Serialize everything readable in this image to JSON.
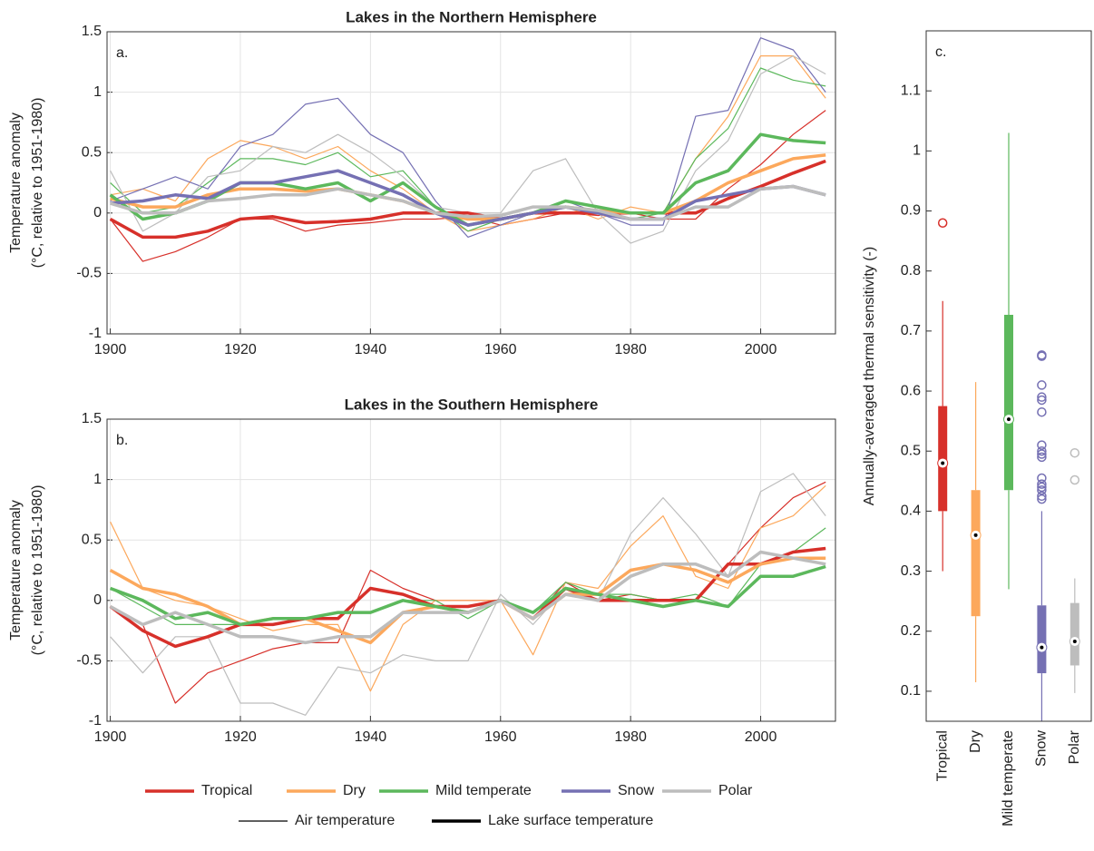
{
  "chart_data": [
    {
      "type": "line",
      "title": "Lakes in the Northern Hemisphere",
      "annotation": "a.",
      "ylabel": [
        "Temperature anomaly",
        "(°C, relative to 1951-1980)"
      ],
      "x": [
        1900,
        1905,
        1910,
        1915,
        1920,
        1925,
        1930,
        1935,
        1940,
        1945,
        1950,
        1955,
        1960,
        1965,
        1970,
        1975,
        1980,
        1985,
        1990,
        1995,
        2000,
        2005,
        2010
      ],
      "xlim": [
        1899.5,
        2011.5
      ],
      "xticks": [
        1900,
        1920,
        1940,
        1960,
        1980,
        2000
      ],
      "ylim": [
        -1,
        1.5
      ],
      "yticks": [
        -1,
        -0.5,
        0,
        0.5,
        1,
        1.5
      ],
      "grid": true,
      "series": [
        {
          "color": "#d7302a",
          "width": 1.2,
          "values": [
            -0.05,
            -0.4,
            -0.32,
            -0.2,
            -0.05,
            -0.05,
            -0.15,
            -0.1,
            -0.08,
            -0.05,
            -0.05,
            -0.03,
            -0.1,
            -0.05,
            0.0,
            -0.02,
            0.0,
            -0.05,
            -0.05,
            0.2,
            0.4,
            0.65,
            0.85
          ]
        },
        {
          "color": "#fca85c",
          "width": 1.2,
          "values": [
            0.15,
            0.2,
            0.1,
            0.45,
            0.6,
            0.55,
            0.45,
            0.55,
            0.35,
            0.2,
            0.0,
            -0.15,
            -0.1,
            -0.05,
            0.05,
            -0.05,
            0.05,
            0.0,
            0.45,
            0.8,
            1.3,
            1.3,
            0.95
          ]
        },
        {
          "color": "#5cb85c",
          "width": 1.2,
          "values": [
            0.25,
            0.0,
            0.05,
            0.25,
            0.45,
            0.45,
            0.4,
            0.5,
            0.3,
            0.35,
            0.05,
            -0.15,
            -0.05,
            0.0,
            0.1,
            0.05,
            -0.05,
            0.0,
            0.45,
            0.7,
            1.2,
            1.1,
            1.05
          ]
        },
        {
          "color": "#7570b3",
          "width": 1.2,
          "values": [
            0.1,
            0.2,
            0.3,
            0.2,
            0.55,
            0.65,
            0.9,
            0.95,
            0.65,
            0.5,
            0.1,
            -0.2,
            -0.1,
            0.0,
            0.1,
            0.0,
            -0.1,
            -0.1,
            0.8,
            0.85,
            1.45,
            1.35,
            1.0
          ]
        },
        {
          "color": "#bdbdbd",
          "width": 1.2,
          "values": [
            0.35,
            -0.15,
            0.0,
            0.3,
            0.35,
            0.55,
            0.5,
            0.65,
            0.5,
            0.3,
            0.05,
            0.0,
            0.0,
            0.35,
            0.45,
            0.0,
            -0.25,
            -0.15,
            0.35,
            0.6,
            1.15,
            1.3,
            1.15
          ]
        },
        {
          "color": "#d7302a",
          "width": 3.5,
          "values": [
            -0.05,
            -0.2,
            -0.2,
            -0.15,
            -0.05,
            -0.03,
            -0.08,
            -0.07,
            -0.05,
            0.0,
            0.0,
            0.0,
            -0.05,
            0.0,
            0.0,
            0.0,
            0.0,
            0.0,
            0.0,
            0.12,
            0.22,
            0.33,
            0.43
          ]
        },
        {
          "color": "#fca85c",
          "width": 3.5,
          "values": [
            0.12,
            0.05,
            0.05,
            0.15,
            0.2,
            0.2,
            0.18,
            0.2,
            0.15,
            0.1,
            0.0,
            -0.05,
            -0.05,
            0.0,
            0.05,
            0.02,
            0.0,
            0.0,
            0.1,
            0.25,
            0.35,
            0.45,
            0.48
          ]
        },
        {
          "color": "#5cb85c",
          "width": 3.5,
          "values": [
            0.15,
            -0.05,
            0.0,
            0.1,
            0.25,
            0.25,
            0.2,
            0.25,
            0.1,
            0.25,
            0.05,
            -0.1,
            -0.05,
            0.0,
            0.1,
            0.05,
            0.0,
            0.0,
            0.25,
            0.35,
            0.65,
            0.6,
            0.58
          ]
        },
        {
          "color": "#7570b3",
          "width": 3.5,
          "values": [
            0.08,
            0.1,
            0.15,
            0.12,
            0.25,
            0.25,
            0.3,
            0.35,
            0.25,
            0.15,
            0.0,
            -0.1,
            -0.05,
            0.0,
            0.05,
            0.0,
            -0.05,
            -0.05,
            0.1,
            0.15,
            0.2,
            0.22,
            0.15
          ]
        },
        {
          "color": "#bdbdbd",
          "width": 3.5,
          "values": [
            0.08,
            0.0,
            0.0,
            0.1,
            0.12,
            0.15,
            0.15,
            0.2,
            0.15,
            0.1,
            0.0,
            -0.03,
            -0.02,
            0.05,
            0.05,
            0.02,
            -0.05,
            -0.05,
            0.05,
            0.05,
            0.2,
            0.22,
            0.15
          ]
        }
      ]
    },
    {
      "type": "line",
      "title": "Lakes in the Southern Hemisphere",
      "annotation": "b.",
      "ylabel": [
        "Temperature anomaly",
        "(°C, relative to 1951-1980)"
      ],
      "x": [
        1900,
        1905,
        1910,
        1915,
        1920,
        1925,
        1930,
        1935,
        1940,
        1945,
        1950,
        1955,
        1960,
        1965,
        1970,
        1975,
        1980,
        1985,
        1990,
        1995,
        2000,
        2005,
        2010
      ],
      "xlim": [
        1899.5,
        2011.5
      ],
      "xticks": [
        1900,
        1920,
        1940,
        1960,
        1980,
        2000
      ],
      "ylim": [
        -1,
        1.5
      ],
      "yticks": [
        -1,
        -0.5,
        0,
        0.5,
        1,
        1.5
      ],
      "grid": true,
      "series": [
        {
          "color": "#d7302a",
          "width": 1.2,
          "values": [
            -0.05,
            -0.2,
            -0.85,
            -0.6,
            -0.5,
            -0.4,
            -0.35,
            -0.35,
            0.25,
            0.1,
            0.0,
            0.0,
            0.0,
            -0.15,
            0.15,
            0.0,
            0.05,
            0.0,
            0.0,
            0.3,
            0.6,
            0.85,
            0.98
          ]
        },
        {
          "color": "#fca85c",
          "width": 1.2,
          "values": [
            0.65,
            0.1,
            0.0,
            -0.05,
            -0.15,
            -0.25,
            -0.2,
            -0.2,
            -0.75,
            -0.2,
            0.0,
            0.0,
            0.0,
            -0.45,
            0.15,
            0.1,
            0.45,
            0.7,
            0.2,
            0.1,
            0.6,
            0.7,
            0.95
          ]
        },
        {
          "color": "#5cb85c",
          "width": 1.2,
          "values": [
            0.1,
            -0.05,
            -0.2,
            -0.2,
            -0.2,
            -0.15,
            -0.15,
            -0.1,
            -0.1,
            0.0,
            0.0,
            -0.15,
            0.0,
            -0.1,
            0.15,
            0.05,
            0.05,
            0.0,
            0.05,
            -0.05,
            0.3,
            0.4,
            0.6
          ]
        },
        {
          "color": "#bdbdbd",
          "width": 1.2,
          "values": [
            -0.3,
            -0.6,
            -0.3,
            -0.3,
            -0.85,
            -0.85,
            -0.95,
            -0.55,
            -0.6,
            -0.45,
            -0.5,
            -0.5,
            0.05,
            -0.2,
            0.1,
            0.0,
            0.55,
            0.85,
            0.55,
            0.2,
            0.9,
            1.05,
            0.7
          ]
        },
        {
          "color": "#d7302a",
          "width": 3.5,
          "values": [
            -0.05,
            -0.25,
            -0.38,
            -0.3,
            -0.2,
            -0.2,
            -0.15,
            -0.15,
            0.1,
            0.05,
            -0.05,
            -0.05,
            0.0,
            -0.15,
            0.1,
            0.0,
            0.0,
            0.0,
            0.0,
            0.3,
            0.3,
            0.4,
            0.43
          ]
        },
        {
          "color": "#fca85c",
          "width": 3.5,
          "values": [
            0.25,
            0.1,
            0.05,
            -0.05,
            -0.2,
            -0.15,
            -0.15,
            -0.25,
            -0.35,
            -0.1,
            -0.05,
            -0.1,
            0.0,
            -0.15,
            0.05,
            0.05,
            0.25,
            0.3,
            0.25,
            0.15,
            0.3,
            0.35,
            0.35
          ]
        },
        {
          "color": "#5cb85c",
          "width": 3.5,
          "values": [
            0.1,
            0.0,
            -0.15,
            -0.1,
            -0.2,
            -0.15,
            -0.15,
            -0.1,
            -0.1,
            0.0,
            -0.05,
            -0.1,
            0.0,
            -0.1,
            0.1,
            0.05,
            0.0,
            -0.05,
            0.0,
            -0.05,
            0.2,
            0.2,
            0.28
          ]
        },
        {
          "color": "#bdbdbd",
          "width": 3.5,
          "values": [
            -0.05,
            -0.2,
            -0.1,
            -0.2,
            -0.3,
            -0.3,
            -0.35,
            -0.3,
            -0.3,
            -0.1,
            -0.1,
            -0.1,
            0.0,
            -0.15,
            0.05,
            0.0,
            0.2,
            0.3,
            0.3,
            0.2,
            0.4,
            0.35,
            0.3
          ]
        }
      ]
    },
    {
      "type": "box",
      "annotation": "c.",
      "ylabel": [
        "Annually-averaged thermal sensitivity (-)"
      ],
      "categories": [
        "Tropical",
        "Dry",
        "Mild temperate",
        "Snow",
        "Polar"
      ],
      "ylim": [
        0.05,
        1.2
      ],
      "yticks": [
        0.1,
        0.2,
        0.3,
        0.4,
        0.5,
        0.6,
        0.7,
        0.8,
        0.9,
        1,
        1.1
      ],
      "boxes": [
        {
          "color": "#d7302a",
          "low": 0.3,
          "q1": 0.4,
          "median": 0.48,
          "q3": 0.575,
          "high": 0.75,
          "outliers": [
            0.88
          ]
        },
        {
          "color": "#fca85c",
          "low": 0.115,
          "q1": 0.225,
          "median": 0.36,
          "q3": 0.435,
          "high": 0.615,
          "outliers": []
        },
        {
          "color": "#5cb85c",
          "low": 0.27,
          "q1": 0.435,
          "median": 0.553,
          "q3": 0.727,
          "high": 1.03,
          "outliers": []
        },
        {
          "color": "#7570b3",
          "low": 0.05,
          "q1": 0.13,
          "median": 0.173,
          "q3": 0.243,
          "high": 0.4,
          "outliers": [
            0.42,
            0.425,
            0.435,
            0.44,
            0.445,
            0.455,
            0.49,
            0.495,
            0.5,
            0.51,
            0.565,
            0.585,
            0.59,
            0.61,
            0.658,
            0.66
          ]
        },
        {
          "color": "#bdbdbd",
          "low": 0.097,
          "q1": 0.143,
          "median": 0.183,
          "q3": 0.247,
          "high": 0.288,
          "outliers": [
            0.452,
            0.497
          ]
        }
      ]
    }
  ],
  "legend": {
    "climates": [
      {
        "name": "Tropical",
        "color": "#d7302a"
      },
      {
        "name": "Dry",
        "color": "#fca85c"
      },
      {
        "name": "Mild temperate",
        "color": "#5cb85c"
      },
      {
        "name": "Snow",
        "color": "#7570b3"
      },
      {
        "name": "Polar",
        "color": "#bdbdbd"
      }
    ],
    "line_types": [
      {
        "name": "Air temperature",
        "width": 1.2
      },
      {
        "name": "Lake surface temperature",
        "width": 3.5
      }
    ]
  }
}
